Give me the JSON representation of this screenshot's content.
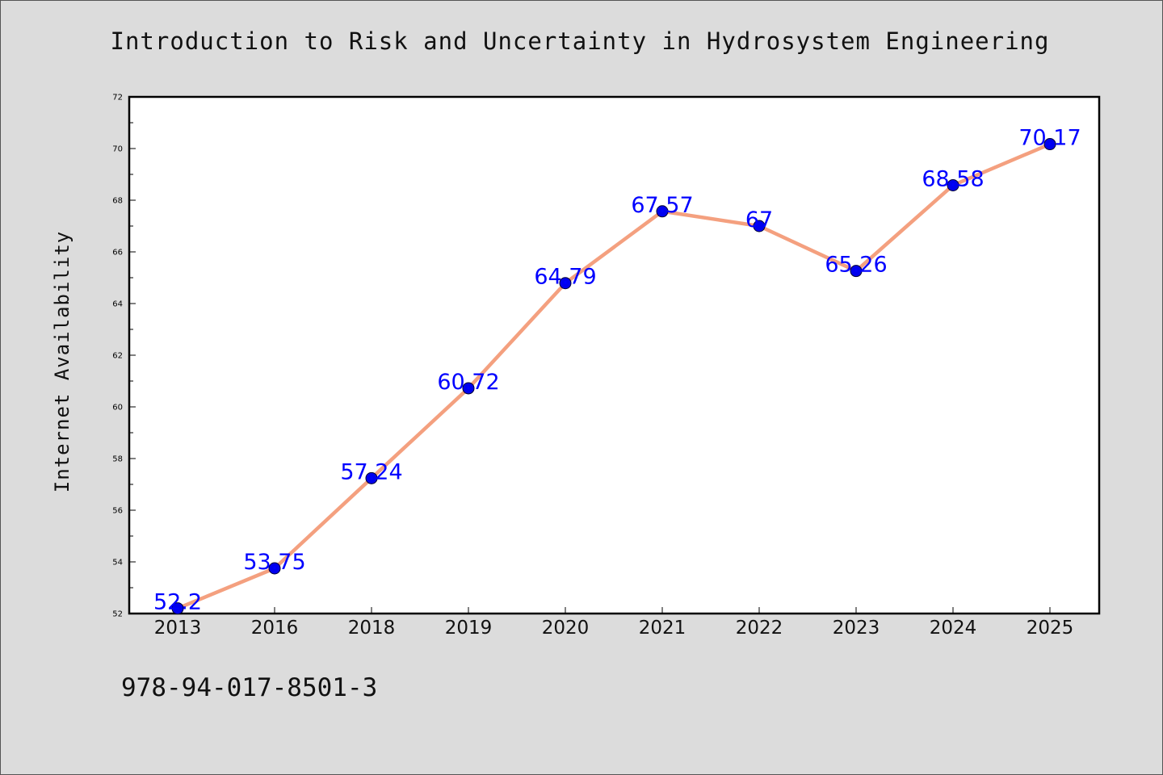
{
  "chart_data": {
    "type": "line",
    "title": "Introduction to Risk and Uncertainty in Hydrosystem Engineering",
    "ylabel": "Internet Availability",
    "xlabel": "",
    "categories": [
      "2013",
      "2016",
      "2018",
      "2019",
      "2020",
      "2021",
      "2022",
      "2023",
      "2024",
      "2025"
    ],
    "values": [
      52.2,
      53.75,
      57.24,
      60.72,
      64.79,
      67.57,
      67,
      65.26,
      68.58,
      70.17
    ],
    "data_labels": [
      "52.2",
      "53.75",
      "57.24",
      "60.72",
      "64.79",
      "67.57",
      "67",
      "65.26",
      "68.58",
      "70.17"
    ],
    "ylim": [
      52,
      72
    ],
    "yticks": [
      52,
      54,
      56,
      58,
      60,
      62,
      64,
      66,
      68,
      70,
      72
    ],
    "grid": false,
    "line_color": "#f4a07f",
    "marker_color": "#0000ee",
    "label_color": "#0000ff"
  },
  "footer": {
    "isbn": "978-94-017-8501-3"
  }
}
